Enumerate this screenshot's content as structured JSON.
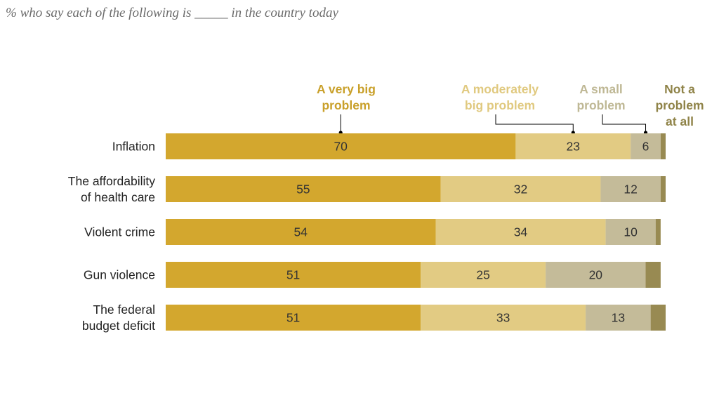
{
  "subtitle": "% who say each of the following is _____ in the country today",
  "chart_data": {
    "type": "bar",
    "orientation": "horizontal",
    "stacked": true,
    "categories": [
      [
        "Inflation"
      ],
      [
        "The affordability",
        "of health care"
      ],
      [
        "Violent crime"
      ],
      [
        "Gun violence"
      ],
      [
        "The federal",
        "budget deficit"
      ]
    ],
    "series": [
      {
        "name": [
          "A very big",
          "problem"
        ],
        "color": "#d3a72e",
        "values": [
          70,
          55,
          54,
          51,
          51
        ]
      },
      {
        "name": [
          "A moderately",
          "big problem"
        ],
        "color": "#e2cb83",
        "values": [
          23,
          32,
          34,
          25,
          33
        ]
      },
      {
        "name": [
          "A small",
          "problem"
        ],
        "color": "#c4bb99",
        "values": [
          6,
          12,
          10,
          20,
          13
        ]
      },
      {
        "name": [
          "Not a",
          "problem",
          "at all"
        ],
        "color": "#988a52",
        "values": [
          1,
          1,
          1,
          3,
          3
        ]
      }
    ],
    "series_label_colors": [
      "#c9a02a",
      "#e0c97f",
      "#bfb895",
      "#8f8348"
    ],
    "hidden_value_series": [
      3
    ],
    "xlim": [
      0,
      100
    ],
    "grid": false,
    "legend": "top, labels above bars"
  }
}
